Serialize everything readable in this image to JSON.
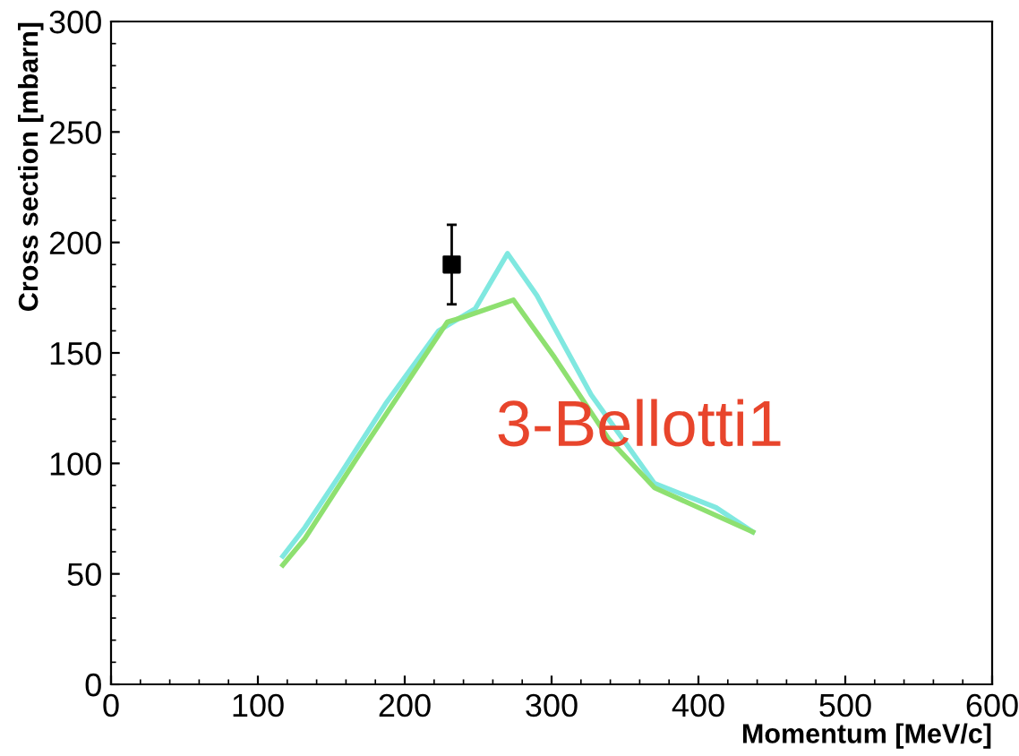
{
  "chart_data": {
    "type": "line",
    "xlabel": "Momentum [MeV/c]",
    "ylabel": "Cross section [mbarn]",
    "xlim": [
      0,
      600
    ],
    "ylim": [
      0,
      300
    ],
    "xticks": [
      0,
      100,
      200,
      300,
      400,
      500,
      600
    ],
    "yticks": [
      0,
      50,
      100,
      150,
      200,
      250,
      300
    ],
    "grid": false,
    "legend": false,
    "marker": "none",
    "line_style": "solid",
    "series": [
      {
        "color": "#80e8e0",
        "x": [
          117,
          132,
          156,
          187,
          223,
          248,
          270,
          290,
          327,
          370,
          412,
          437
        ],
        "values": [
          58,
          71,
          95,
          127,
          160,
          170,
          195,
          176,
          131,
          91,
          80,
          69
        ]
      },
      {
        "color": "#8ee070",
        "x": [
          117,
          132,
          168,
          205,
          229,
          239,
          274,
          302,
          339,
          370,
          437
        ],
        "values": [
          54,
          66,
          103,
          140,
          164,
          166,
          174,
          148,
          111,
          89,
          69
        ]
      },
      {
        "type": "scatter",
        "marker": "square",
        "color": "#000000",
        "x": [
          232
        ],
        "values": [
          190
        ],
        "errors": [
          [
            172,
            208
          ]
        ]
      }
    ],
    "annotations": [
      "3-Bellotti1"
    ]
  }
}
